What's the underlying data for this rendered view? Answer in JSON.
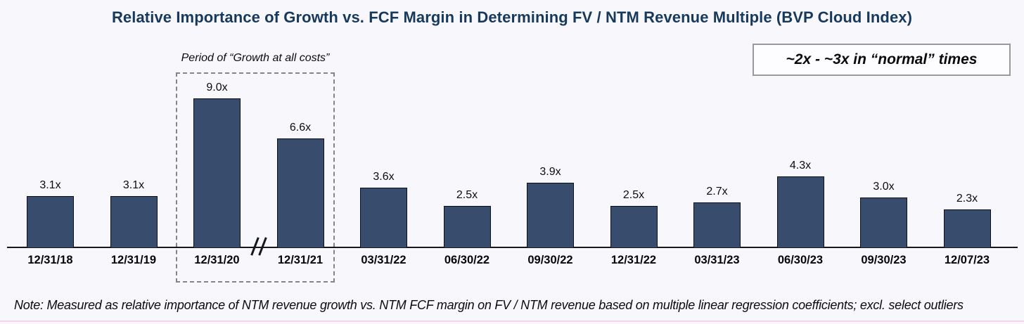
{
  "title": "Relative Importance of Growth vs. FCF Margin in Determining FV / NTM Revenue Multiple (BVP Cloud Index)",
  "annotations": {
    "growth_period_label": "Period of “Growth at all costs”",
    "normal_times_label": "~2x - ~3x in “normal” times"
  },
  "note": "Note: Measured as relative importance of NTM revenue growth vs. NTM FCF margin on FV / NTM revenue based on multiple linear regression coefficients; excl. select outliers",
  "colors": {
    "background": "#F8F7FC",
    "title_navy": "#17395C",
    "bar_fill": "#384D6E",
    "bar_border": "#0d1117",
    "axis": "#14181d",
    "dashed_box_gray": "#858585",
    "bottom_divider_pink": "#F8D2EF"
  },
  "chart_data": {
    "type": "bar",
    "title": "Relative Importance of Growth vs. FCF Margin in Determining FV / NTM Revenue Multiple (BVP Cloud Index)",
    "categories": [
      "12/31/18",
      "12/31/19",
      "12/31/20",
      "12/31/21",
      "03/31/22",
      "06/30/22",
      "09/30/22",
      "12/31/22",
      "03/31/23",
      "06/30/23",
      "09/30/23",
      "12/07/23"
    ],
    "values": [
      3.1,
      3.1,
      9.0,
      6.6,
      3.6,
      2.5,
      3.9,
      2.5,
      2.7,
      4.3,
      3.0,
      2.3
    ],
    "value_labels": [
      "3.1x",
      "3.1x",
      "9.0x",
      "6.6x",
      "3.6x",
      "2.5x",
      "3.9x",
      "2.5x",
      "2.7x",
      "4.3x",
      "3.0x",
      "2.3x"
    ],
    "xlabel": "",
    "ylabel": "",
    "ylim": [
      0,
      10
    ],
    "grid": false,
    "data_labels": true,
    "legend": "none",
    "axis_break_between": [
      "12/31/20",
      "12/31/21"
    ],
    "highlighted_categories": [
      "12/31/20",
      "12/31/21"
    ],
    "highlight_label": "Period of “Growth at all costs”",
    "callout_label": "~2x - ~3x in “normal” times"
  }
}
